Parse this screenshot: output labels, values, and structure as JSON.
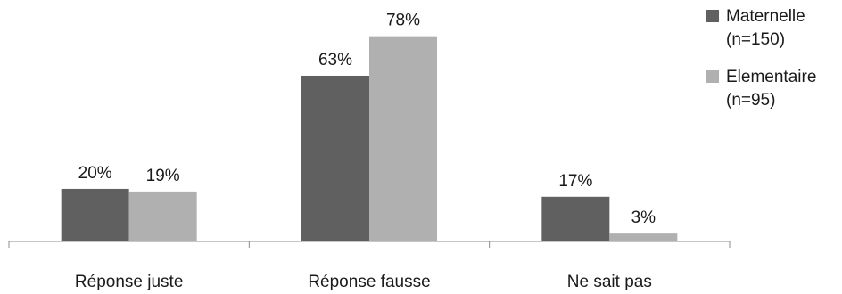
{
  "chart_data": {
    "type": "bar",
    "title": "",
    "xlabel": "",
    "ylabel": "",
    "ylim": [
      0,
      85
    ],
    "grid": false,
    "legend_position": "top-right",
    "categories": [
      "Réponse juste",
      "Réponse fausse",
      "Ne sait pas"
    ],
    "series": [
      {
        "name": "Maternelle (n=150)",
        "legend_lines": [
          "Maternelle",
          "(n=150)"
        ],
        "color": "#606060",
        "values": [
          20,
          63,
          17
        ],
        "labels": [
          "20%",
          "63%",
          "17%"
        ]
      },
      {
        "name": "Elementaire (n=95)",
        "legend_lines": [
          "Elementaire",
          "(n=95)"
        ],
        "color": "#b0b0b0",
        "values": [
          19,
          78,
          3
        ],
        "labels": [
          "19%",
          "78%",
          "3%"
        ]
      }
    ]
  }
}
